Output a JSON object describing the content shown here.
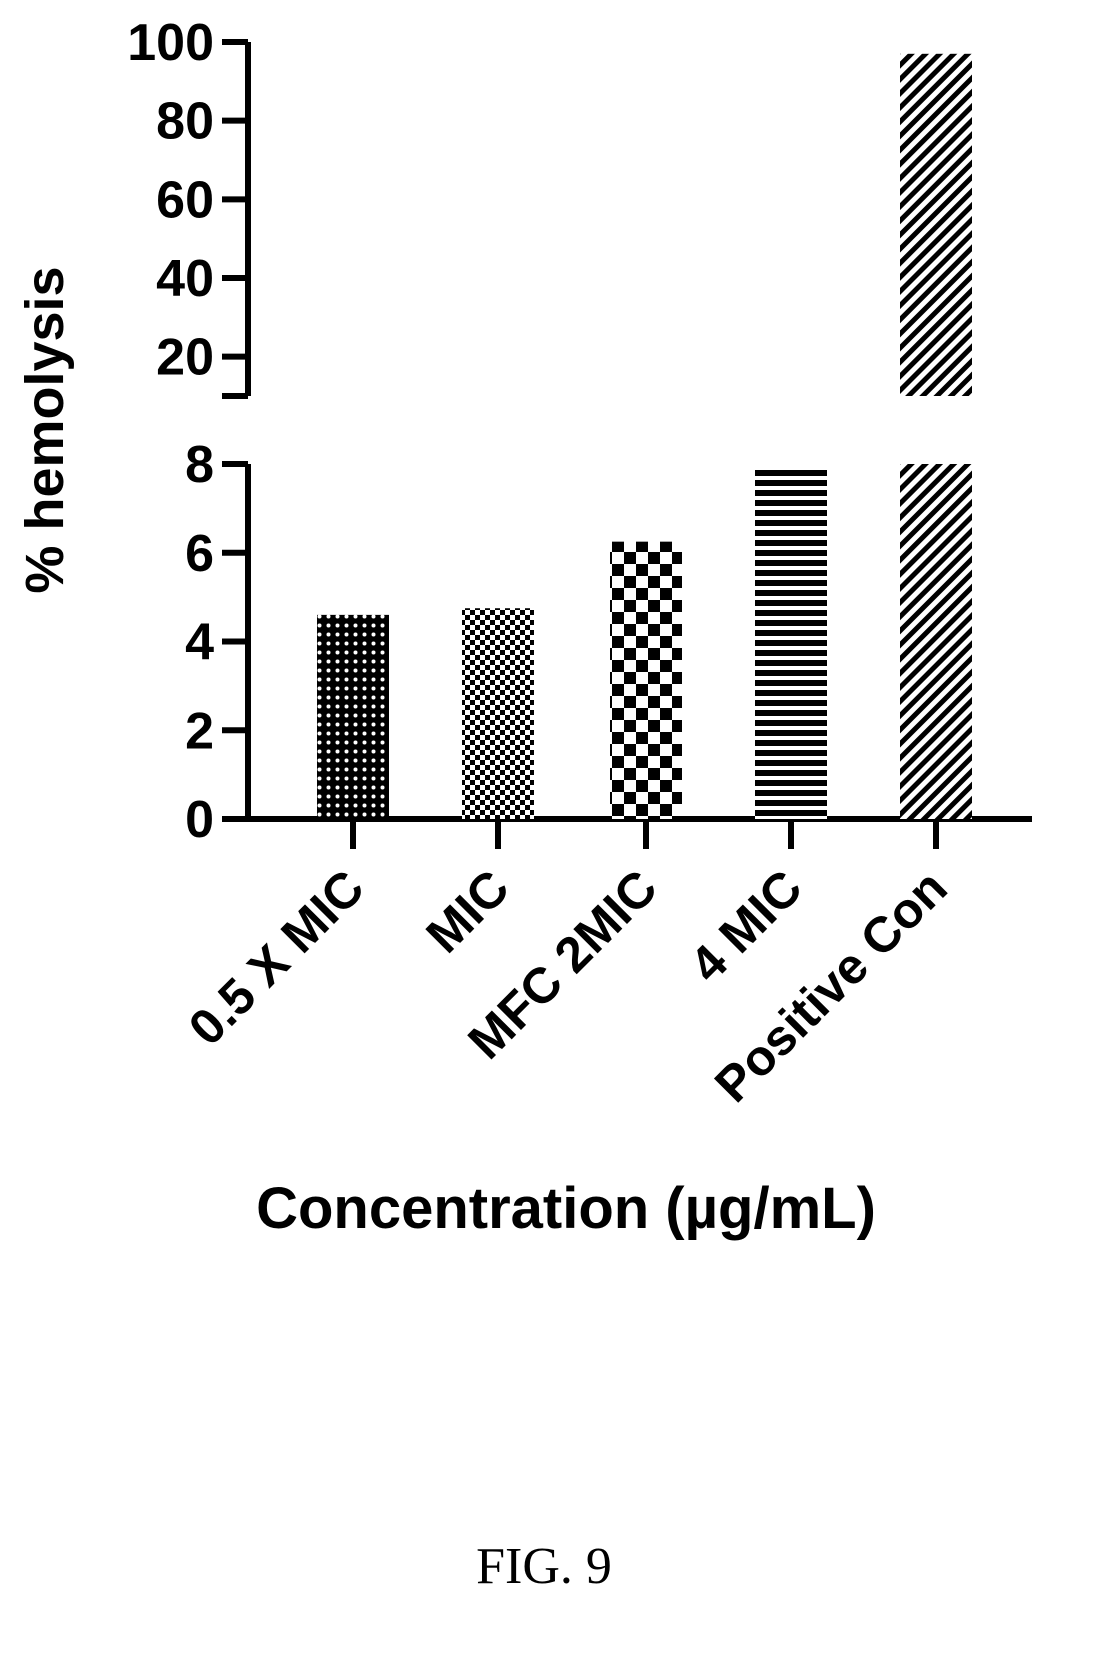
{
  "chart_data": {
    "type": "bar",
    "categories": [
      "0.5 X MIC",
      "MIC",
      "MFC 2MIC",
      "4 MIC",
      "Positive Con"
    ],
    "values": [
      4.6,
      4.75,
      6.25,
      7.95,
      97
    ],
    "ylabel": "% hemolysis",
    "xlabel": "Concentration (µg/mL)",
    "y_axis_break": {
      "lower_range": [
        0,
        8
      ],
      "upper_range": [
        10,
        100
      ],
      "lower_ticks": [
        "0",
        "2",
        "4",
        "6",
        "8"
      ],
      "upper_ticks": [
        "20",
        "40",
        "60",
        "80",
        "100"
      ]
    },
    "bar_patterns": [
      "dots",
      "fine-checker",
      "checkerboard",
      "horizontal-stripes",
      "diagonal-hatch"
    ],
    "bar_color": "#000000",
    "grid": false,
    "legend": "none"
  },
  "caption": "FIG. 9"
}
